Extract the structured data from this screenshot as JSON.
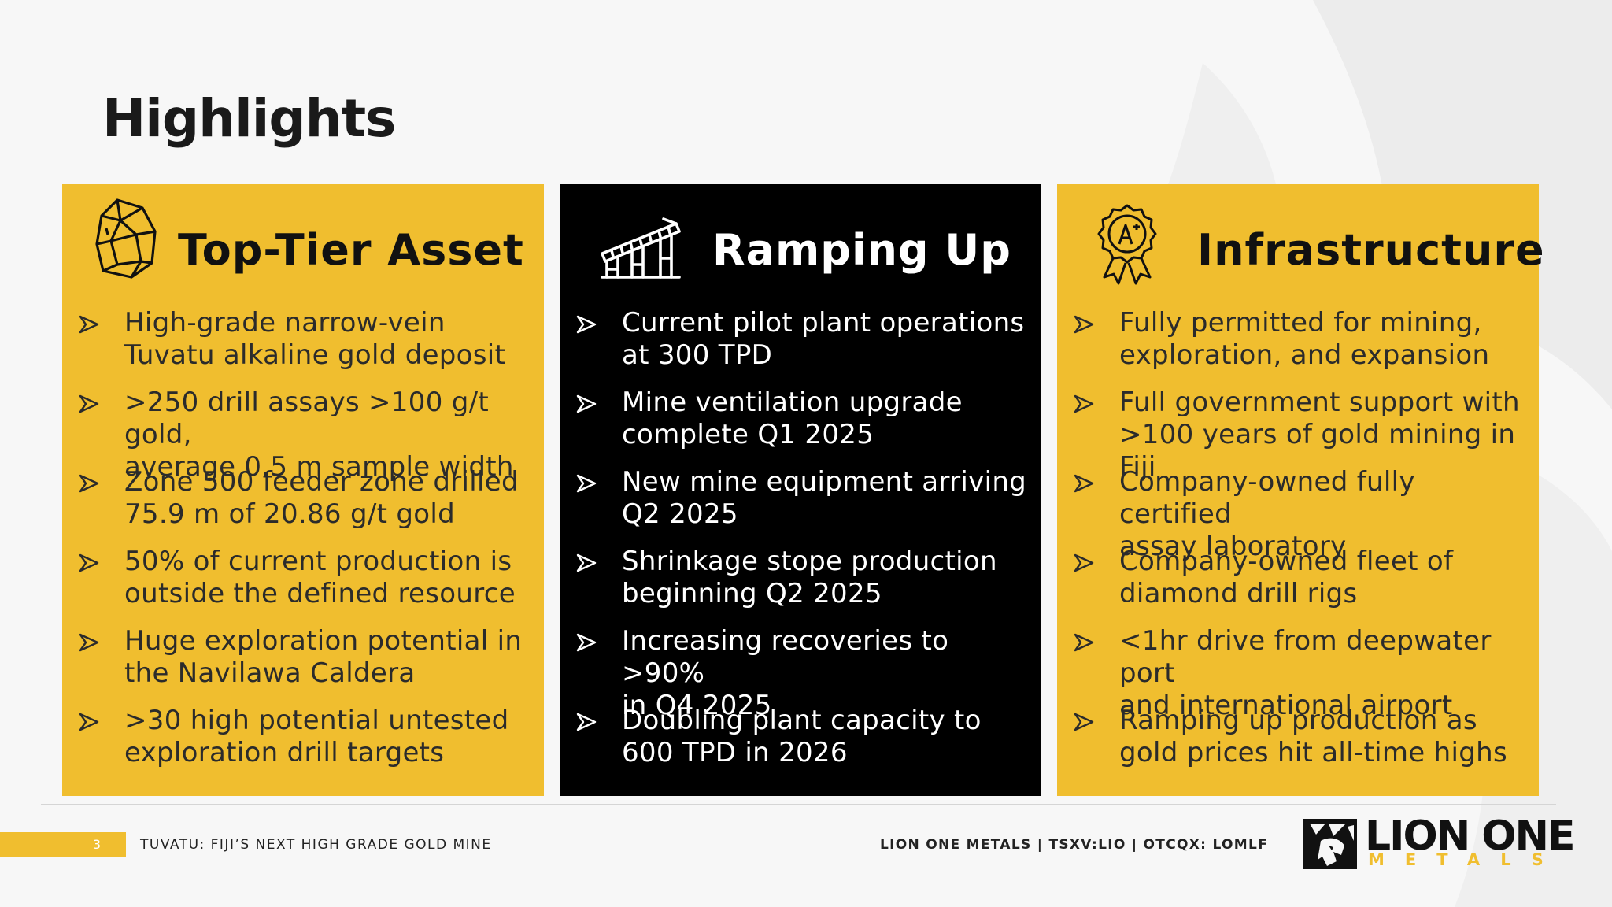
{
  "slide": {
    "title": "Highlights"
  },
  "cards": [
    {
      "title": "Top-Tier Asset",
      "icon": "gem-rock-icon",
      "bullets": [
        "High-grade narrow-vein\nTuvatu alkaline gold deposit",
        ">250 drill assays >100 g/t gold,\naverage 0.5 m sample width",
        "Zone 500 feeder zone drilled\n75.9 m of 20.86 g/t gold",
        "50% of current production is\noutside the defined resource",
        "Huge exploration potential in\nthe Navilawa Caldera",
        ">30 high potential untested\nexploration drill targets"
      ]
    },
    {
      "title": "Ramping Up",
      "icon": "conveyor-icon",
      "bullets": [
        "Current pilot plant operations\nat 300 TPD",
        "Mine ventilation upgrade\ncomplete Q1 2025",
        "New mine equipment arriving\nQ2 2025",
        "Shrinkage stope production\nbeginning Q2 2025",
        "Increasing recoveries to >90%\nin Q4 2025",
        "Doubling plant capacity to\n600 TPD in 2026"
      ]
    },
    {
      "title": "Infrastructure",
      "icon": "certified-badge-icon",
      "bullets": [
        "Fully permitted for mining,\nexploration, and expansion",
        "Full government support with\n>100 years of gold mining in Fiji",
        "Company-owned fully certified\nassay laboratory",
        "Company-owned fleet of\ndiamond drill rigs",
        "<1hr drive from deepwater port\nand international airport",
        "Ramping up production as\ngold prices hit all-time highs"
      ]
    }
  ],
  "footer": {
    "page_number": "3",
    "tagline": "TUVATU: FIJI’S NEXT HIGH GRADE GOLD MINE",
    "company_tickers": "LION ONE METALS  |  TSXV:LIO  |  OTCQX: LOMLF",
    "logo_line1": "LION ONE",
    "logo_line2": "METALS"
  },
  "colors": {
    "accent": "#f0be2f",
    "dark": "#000000",
    "background": "#f7f7f7"
  }
}
